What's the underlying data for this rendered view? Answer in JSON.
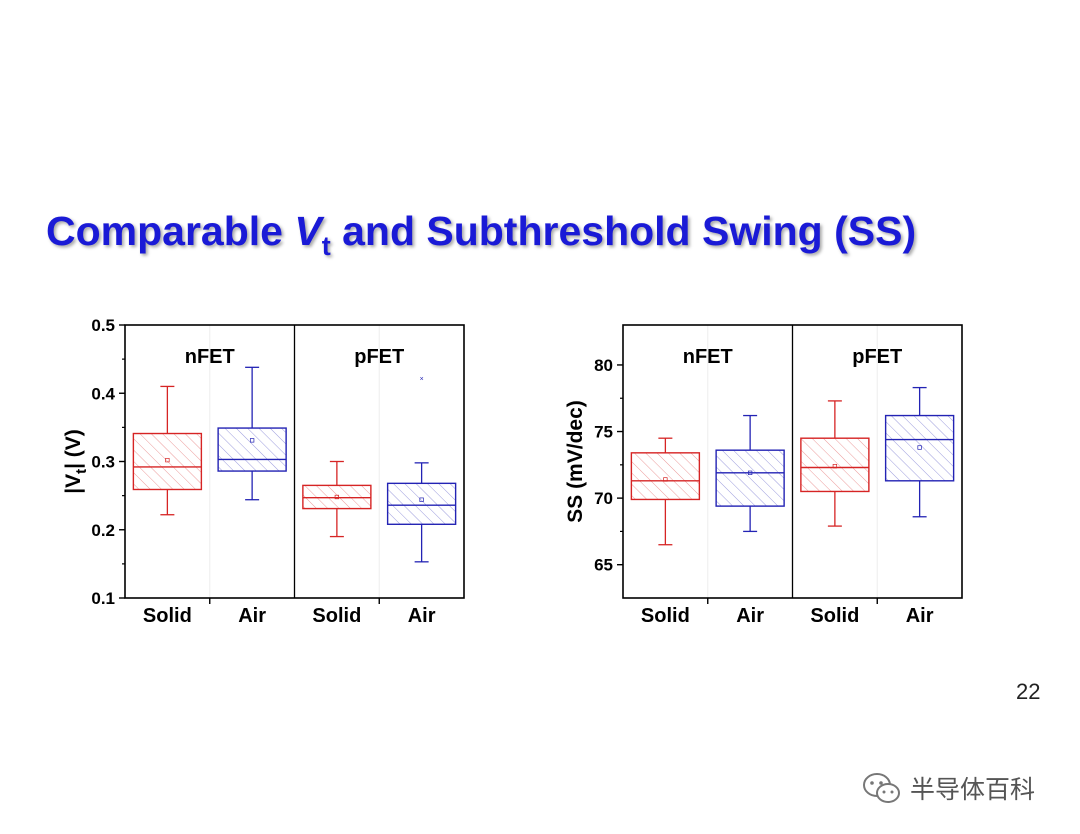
{
  "slide": {
    "title_pre": "Comparable ",
    "title_v": "V",
    "title_sub": "t",
    "title_post": " and Subthreshold Swing (SS)",
    "page_number": "22",
    "watermark_text": "半导体百科",
    "watermark_icon": "wechat-icon",
    "title_color": "#1a1ad6"
  },
  "colors": {
    "solid": "#d62424",
    "air": "#2323b4",
    "axis": "#000000"
  },
  "chart_data": [
    {
      "type": "box",
      "ylabel_pre": "|V",
      "ylabel_sub": "t",
      "ylabel_post": "| (V)",
      "ylim": [
        0.1,
        0.5
      ],
      "yticks": [
        0.1,
        0.2,
        0.3,
        0.4,
        0.5
      ],
      "tick_labels": [
        "0.1",
        "0.2",
        "0.3",
        "0.4",
        "0.5"
      ],
      "groups": [
        "nFET",
        "pFET"
      ],
      "categories": [
        "Solid",
        "Air",
        "Solid",
        "Air"
      ],
      "boxes": [
        {
          "group": "nFET",
          "category": "Solid",
          "min": 0.222,
          "q1": 0.259,
          "median": 0.292,
          "q3": 0.341,
          "max": 0.41,
          "mean": 0.302
        },
        {
          "group": "nFET",
          "category": "Air",
          "min": 0.244,
          "q1": 0.286,
          "median": 0.303,
          "q3": 0.349,
          "max": 0.438,
          "mean": 0.331
        },
        {
          "group": "pFET",
          "category": "Solid",
          "min": 0.19,
          "q1": 0.231,
          "median": 0.247,
          "q3": 0.265,
          "max": 0.3,
          "mean": 0.248
        },
        {
          "group": "pFET",
          "category": "Air",
          "min": 0.153,
          "q1": 0.208,
          "median": 0.236,
          "q3": 0.268,
          "max": 0.298,
          "mean": 0.244,
          "outliers": [
            0.421
          ]
        }
      ]
    },
    {
      "type": "box",
      "ylabel": "SS (mV/dec)",
      "ylim": [
        62.5,
        83
      ],
      "yticks": [
        65,
        70,
        75,
        80
      ],
      "tick_labels": [
        "65",
        "70",
        "75",
        "80"
      ],
      "groups": [
        "nFET",
        "pFET"
      ],
      "categories": [
        "Solid",
        "Air",
        "Solid",
        "Air"
      ],
      "boxes": [
        {
          "group": "nFET",
          "category": "Solid",
          "min": 66.5,
          "q1": 69.9,
          "median": 71.3,
          "q3": 73.4,
          "max": 74.5,
          "mean": 71.4
        },
        {
          "group": "nFET",
          "category": "Air",
          "min": 67.5,
          "q1": 69.4,
          "median": 71.9,
          "q3": 73.6,
          "max": 76.2,
          "mean": 71.9
        },
        {
          "group": "pFET",
          "category": "Solid",
          "min": 67.9,
          "q1": 70.5,
          "median": 72.3,
          "q3": 74.5,
          "max": 77.3,
          "mean": 72.4
        },
        {
          "group": "pFET",
          "category": "Air",
          "min": 68.6,
          "q1": 71.3,
          "median": 74.4,
          "q3": 76.2,
          "max": 78.3,
          "mean": 73.8
        }
      ]
    }
  ]
}
